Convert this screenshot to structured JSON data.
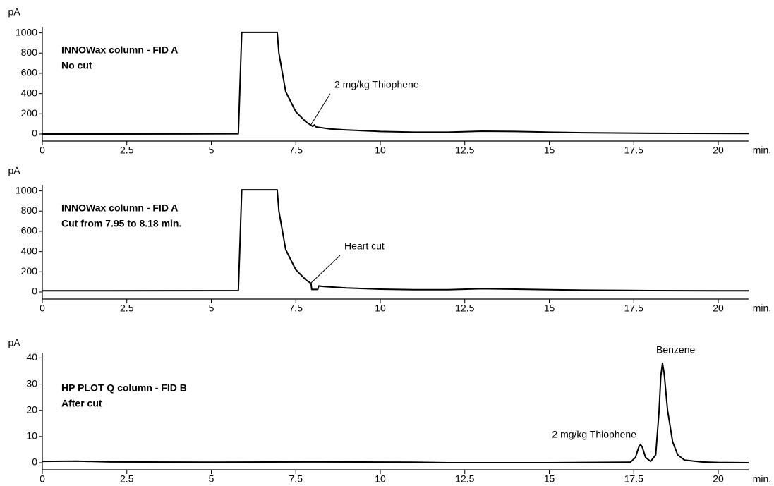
{
  "chart_data": [
    {
      "type": "line",
      "title": "INNOWax column - FID A",
      "subtitle": "No cut",
      "y_label": "pA",
      "x_label": "min.",
      "x": [
        0,
        2,
        4,
        5.8,
        5.85,
        5.9,
        6.95,
        7.0,
        7.2,
        7.5,
        7.8,
        8.0,
        8.05,
        8.1,
        8.5,
        9,
        10,
        11,
        12,
        13,
        14,
        15,
        16,
        18,
        20,
        20.9
      ],
      "series": [
        {
          "color": "#000000",
          "values": [
            0,
            0,
            1,
            2,
            500,
            1005,
            1005,
            800,
            420,
            220,
            120,
            75,
            90,
            70,
            50,
            40,
            25,
            18,
            18,
            28,
            25,
            18,
            13,
            8,
            6,
            5
          ]
        }
      ],
      "xlim": [
        0,
        20.9
      ],
      "ylim": [
        -70,
        1060
      ],
      "xticks": [
        0,
        2.5,
        5,
        7.5,
        10,
        12.5,
        15,
        17.5,
        20
      ],
      "yticks": [
        0,
        200,
        400,
        600,
        800,
        1000
      ],
      "annotations": [
        "2 mg/kg Thiophene"
      ]
    },
    {
      "type": "line",
      "title": "INNOWax column - FID A",
      "subtitle": "Cut from 7.95 to 8.18 min.",
      "y_label": "pA",
      "x_label": "min.",
      "x": [
        0,
        2,
        4,
        5.8,
        5.85,
        5.9,
        6.95,
        7.0,
        7.2,
        7.5,
        7.8,
        7.95,
        7.97,
        8.15,
        8.18,
        8.3,
        8.5,
        9,
        10,
        11,
        12,
        13,
        14,
        15,
        16,
        18,
        20,
        20.9
      ],
      "series": [
        {
          "color": "#000000",
          "values": [
            12,
            12,
            13,
            14,
            500,
            1010,
            1010,
            800,
            420,
            220,
            120,
            85,
            25,
            25,
            60,
            55,
            50,
            40,
            28,
            22,
            22,
            32,
            28,
            22,
            18,
            14,
            12,
            12
          ]
        }
      ],
      "xlim": [
        0,
        20.9
      ],
      "ylim": [
        -70,
        1060
      ],
      "xticks": [
        0,
        2.5,
        5,
        7.5,
        10,
        12.5,
        15,
        17.5,
        20
      ],
      "yticks": [
        0,
        200,
        400,
        600,
        800,
        1000
      ],
      "annotations": [
        "Heart cut"
      ]
    },
    {
      "type": "line",
      "title": "HP PLOT Q column - FID B",
      "subtitle": "After cut",
      "y_label": "pA",
      "x_label": "min.",
      "x": [
        0,
        1,
        2,
        5,
        8,
        11,
        12,
        15,
        17.4,
        17.55,
        17.65,
        17.7,
        17.75,
        17.85,
        18,
        18.15,
        18.25,
        18.3,
        18.35,
        18.4,
        18.5,
        18.65,
        18.8,
        19,
        19.5,
        20,
        20.9
      ],
      "series": [
        {
          "color": "#000000",
          "values": [
            0.5,
            0.6,
            0.3,
            0.2,
            0.3,
            0.2,
            0,
            0,
            0.2,
            2,
            6,
            7,
            6,
            2,
            0.5,
            3,
            20,
            33,
            38,
            34,
            20,
            8,
            3,
            1,
            0.3,
            0.1,
            0
          ]
        }
      ],
      "xlim": [
        0,
        20.9
      ],
      "ylim": [
        -2.7,
        42
      ],
      "xticks": [
        0,
        2.5,
        5,
        7.5,
        10,
        12.5,
        15,
        17.5,
        20
      ],
      "yticks": [
        0,
        10,
        20,
        30,
        40
      ],
      "annotations": [
        "Benzene",
        "2 mg/kg Thiophene"
      ]
    }
  ]
}
